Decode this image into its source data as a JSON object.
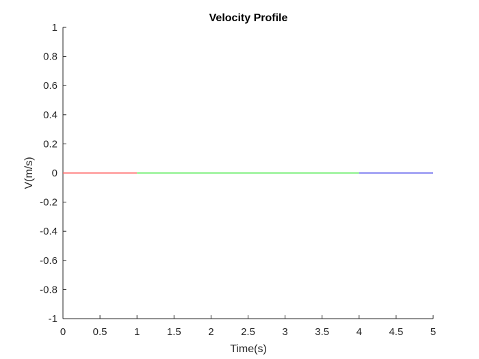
{
  "chart_data": {
    "type": "line",
    "title": "Velocity Profile",
    "xlabel": "Time(s)",
    "ylabel": "V(m/s)",
    "xlim": [
      0,
      5
    ],
    "ylim": [
      -1,
      1
    ],
    "xticks": [
      0,
      0.5,
      1,
      1.5,
      2,
      2.5,
      3,
      3.5,
      4,
      4.5,
      5
    ],
    "xtick_labels": [
      "0",
      "0.5",
      "1",
      "1.5",
      "2",
      "2.5",
      "3",
      "3.5",
      "4",
      "4.5",
      "5"
    ],
    "yticks": [
      1,
      0.8,
      0.6,
      0.4,
      0.2,
      0,
      -0.2,
      -0.4,
      -0.6,
      -0.8,
      -1
    ],
    "ytick_labels": [
      "1",
      "0.8",
      "0.6",
      "0.4",
      "0.2",
      "0",
      "-0.2",
      "-0.4",
      "-0.6",
      "-0.8",
      "-1"
    ],
    "grid": false,
    "series": [
      {
        "x": [
          0,
          1
        ],
        "y": [
          0,
          0
        ],
        "color": "#ff6b6b"
      },
      {
        "x": [
          1,
          4
        ],
        "y": [
          0,
          0
        ],
        "color": "#66ee66"
      },
      {
        "x": [
          4,
          5
        ],
        "y": [
          0,
          0
        ],
        "color": "#6666ee"
      }
    ],
    "axis_color": "#262626"
  }
}
